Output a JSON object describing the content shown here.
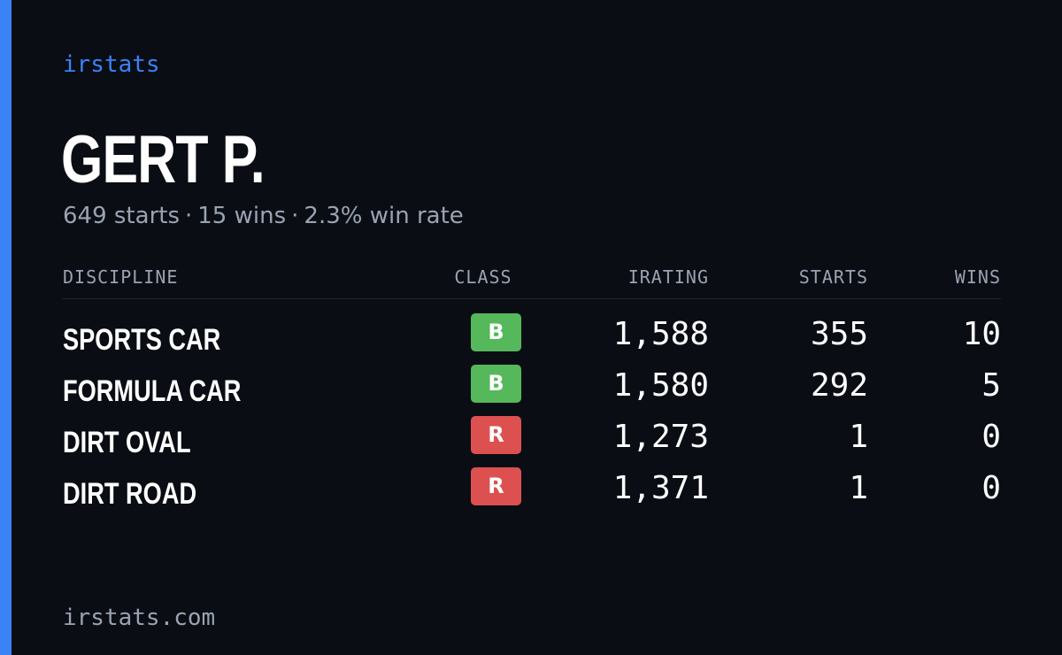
{
  "brand": "irstats",
  "driver": {
    "name": "GERT P.",
    "starts_text": "649 starts",
    "wins_text": "15 wins",
    "winrate_text": "2.3% win rate",
    "separator": "·"
  },
  "table": {
    "headers": {
      "discipline": "DISCIPLINE",
      "class": "CLASS",
      "irating": "IRATING",
      "starts": "STARTS",
      "wins": "WINS"
    },
    "rows": [
      {
        "discipline": "SPORTS CAR",
        "class": "B",
        "irating": "1,588",
        "starts": "355",
        "wins": "10"
      },
      {
        "discipline": "FORMULA CAR",
        "class": "B",
        "irating": "1,580",
        "starts": "292",
        "wins": "5"
      },
      {
        "discipline": "DIRT OVAL",
        "class": "R",
        "irating": "1,273",
        "starts": "1",
        "wins": "0"
      },
      {
        "discipline": "DIRT ROAD",
        "class": "R",
        "irating": "1,371",
        "starts": "1",
        "wins": "0"
      }
    ]
  },
  "footer": "irstats.com",
  "colors": {
    "background": "#0a0d14",
    "accent": "#3b82f6",
    "muted_text": "#9aa3b2",
    "class_b": "#55b85a",
    "class_r": "#dc5150"
  }
}
